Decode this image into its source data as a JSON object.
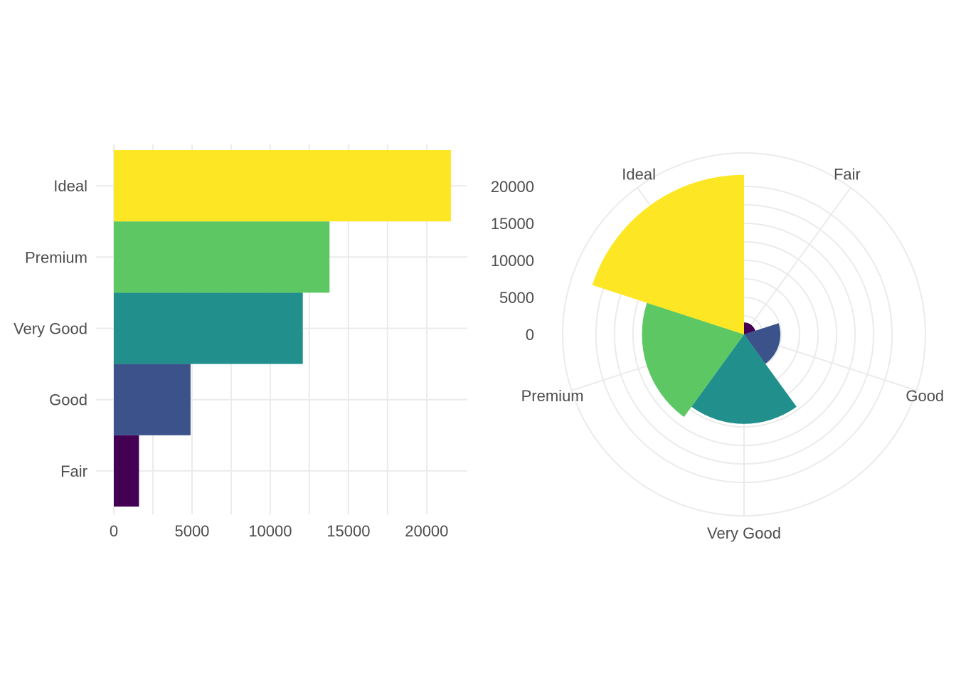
{
  "chart_data": [
    {
      "type": "bar",
      "orientation": "horizontal",
      "categories": [
        "Fair",
        "Good",
        "Very Good",
        "Premium",
        "Ideal"
      ],
      "values": [
        1610,
        4906,
        12082,
        13791,
        21551
      ],
      "colors": [
        "#440154",
        "#3B528B",
        "#21908C",
        "#5DC863",
        "#FDE725"
      ],
      "x_ticks": [
        "0",
        "5000",
        "10000",
        "15000",
        "20000"
      ],
      "xlim": [
        0,
        22600
      ],
      "grid": true,
      "legend": "none"
    },
    {
      "type": "bar",
      "coordinates": "polar",
      "categories": [
        "Fair",
        "Good",
        "Very Good",
        "Premium",
        "Ideal"
      ],
      "values": [
        1610,
        4906,
        12082,
        13791,
        21551
      ],
      "colors": [
        "#440154",
        "#3B528B",
        "#21908C",
        "#5DC863",
        "#FDE725"
      ],
      "r_ticks": [
        "0",
        "5000",
        "10000",
        "15000",
        "20000"
      ],
      "rlim": [
        0,
        24500
      ],
      "grid": true,
      "legend": "none"
    }
  ]
}
